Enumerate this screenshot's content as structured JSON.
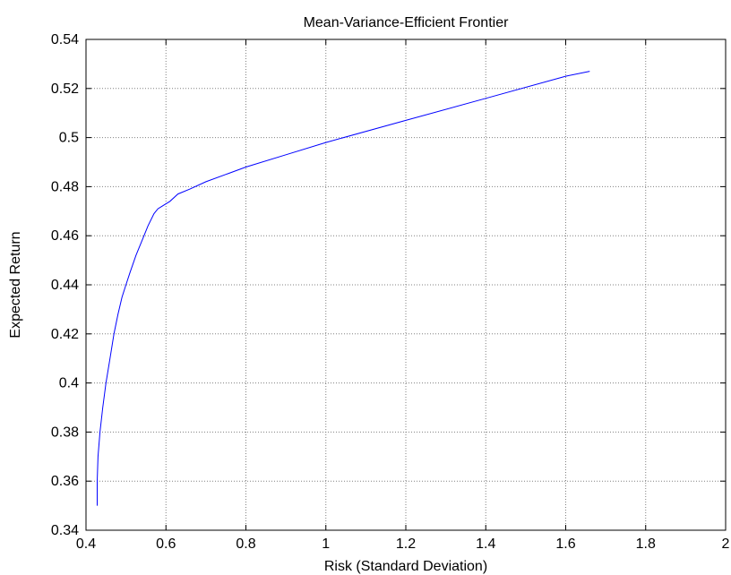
{
  "chart_data": {
    "type": "line",
    "title": "Mean-Variance-Efficient Frontier",
    "xlabel": "Risk (Standard Deviation)",
    "ylabel": "Expected Return",
    "xlim": [
      0.4,
      2.0
    ],
    "ylim": [
      0.34,
      0.54
    ],
    "xticks": [
      "0.4",
      "0.6",
      "0.8",
      "1",
      "1.2",
      "1.4",
      "1.6",
      "1.8",
      "2"
    ],
    "yticks": [
      "0.34",
      "0.36",
      "0.38",
      "0.4",
      "0.42",
      "0.44",
      "0.46",
      "0.48",
      "0.5",
      "0.52",
      "0.54"
    ],
    "grid": true,
    "line_color": "#0000ff",
    "series": [
      {
        "x": [
          0.428,
          0.428,
          0.43,
          0.435,
          0.442,
          0.45,
          0.46,
          0.47,
          0.48,
          0.49,
          0.5,
          0.51,
          0.525,
          0.54,
          0.555,
          0.57,
          0.58,
          0.59,
          0.61,
          0.63,
          0.66,
          0.7,
          0.75,
          0.8,
          0.9,
          1.0,
          1.2,
          1.4,
          1.6,
          1.66
        ],
        "y": [
          0.35,
          0.36,
          0.37,
          0.38,
          0.39,
          0.4,
          0.41,
          0.42,
          0.428,
          0.435,
          0.44,
          0.445,
          0.452,
          0.458,
          0.464,
          0.469,
          0.471,
          0.472,
          0.474,
          0.477,
          0.479,
          0.482,
          0.485,
          0.488,
          0.493,
          0.498,
          0.507,
          0.516,
          0.525,
          0.527
        ]
      }
    ]
  }
}
